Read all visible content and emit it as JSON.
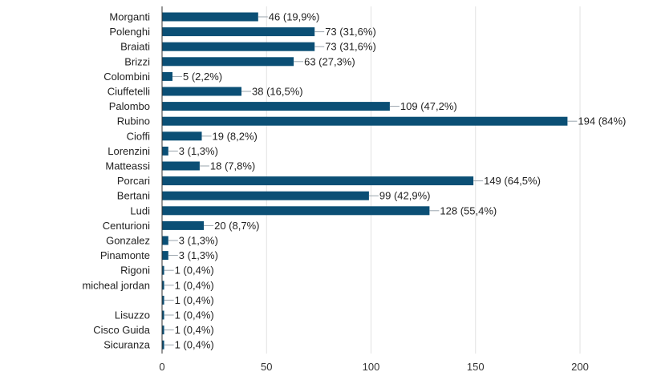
{
  "chart_data": {
    "type": "bar",
    "orientation": "horizontal",
    "categories": [
      "Morganti",
      "Polenghi",
      "Braiati",
      "Brizzi",
      "Colombini",
      "Ciuffetelli",
      "Palombo",
      "Rubino",
      "Cioffi",
      "Lorenzini",
      "Matteassi",
      "Porcari",
      "Bertani",
      "Ludi",
      "Centurioni",
      "Gonzalez",
      "Pinamonte",
      "Rigoni",
      "micheal jordan",
      "",
      "Lisuzzo",
      "Cisco Guida",
      "Sicuranza"
    ],
    "values": [
      46,
      73,
      73,
      63,
      5,
      38,
      109,
      194,
      19,
      3,
      18,
      149,
      99,
      128,
      20,
      3,
      3,
      1,
      1,
      1,
      1,
      1,
      1
    ],
    "data_labels": [
      "46 (19,9%)",
      "73 (31,6%)",
      "73 (31,6%)",
      "63 (27,3%)",
      "5 (2,2%)",
      "38 (16,5%)",
      "109 (47,2%)",
      "194 (84%)",
      "19 (8,2%)",
      "3 (1,3%)",
      "18 (7,8%)",
      "149 (64,5%)",
      "99 (42,9%)",
      "128 (55,4%)",
      "20 (8,7%)",
      "3 (1,3%)",
      "3 (1,3%)",
      "1 (0,4%)",
      "1 (0,4%)",
      "1 (0,4%)",
      "1 (0,4%)",
      "1 (0,4%)",
      "1 (0,4%)"
    ],
    "xlim": [
      0,
      200
    ],
    "x_ticks": [
      "0",
      "50",
      "100",
      "150",
      "200"
    ],
    "grid": true,
    "bar_color": "#0b4f75",
    "title": "",
    "xlabel": "",
    "ylabel": ""
  }
}
